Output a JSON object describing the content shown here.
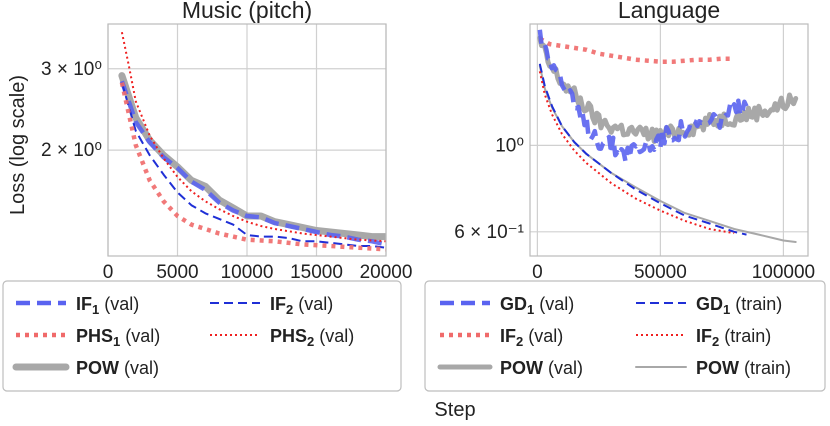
{
  "xlabel_shared": "Step",
  "ylabel_shared": "Loss (log scale)",
  "colors": {
    "blue": "#5a63f0",
    "red": "#f06a6a",
    "darkblue": "#1f2fd6",
    "gray": "#a8a8a8",
    "brightred": "#ef2020"
  },
  "chart_data": [
    {
      "type": "line",
      "title": "Music (pitch)",
      "xlim": [
        0,
        20000
      ],
      "ylim_log": [
        1.18,
        3.75
      ],
      "xticks": [
        0,
        5000,
        10000,
        15000,
        20000
      ],
      "xtick_labels": [
        "0",
        "5000",
        "10000",
        "15000",
        "20000"
      ],
      "yticks": [
        3.0,
        2.0
      ],
      "ytick_labels": [
        "3 × 10⁰",
        "2 × 10⁰"
      ],
      "legend": {
        "entries": [
          {
            "key": "if1_val",
            "name": "IF",
            "sub": "1",
            "suffix": "(val)"
          },
          {
            "key": "if2_val",
            "name": "IF",
            "sub": "2",
            "suffix": "(val)"
          },
          {
            "key": "phs1_val",
            "name": "PHS",
            "sub": "1",
            "suffix": "(val)"
          },
          {
            "key": "phs2_val",
            "name": "PHS",
            "sub": "2",
            "suffix": "(val)"
          },
          {
            "key": "pow_val",
            "name": "POW",
            "sub": "",
            "suffix": "(val)"
          }
        ]
      },
      "series": [
        {
          "key": "pow_val",
          "color": "gray",
          "style": "thick",
          "x": [
            1000,
            2000,
            3000,
            4000,
            5000,
            6000,
            7000,
            8000,
            9000,
            10000,
            11000,
            12000,
            13000,
            14000,
            15000,
            16000,
            17000,
            18000,
            19000,
            20000
          ],
          "y": [
            2.9,
            2.35,
            2.1,
            1.95,
            1.84,
            1.72,
            1.67,
            1.56,
            1.5,
            1.44,
            1.44,
            1.4,
            1.38,
            1.36,
            1.34,
            1.33,
            1.32,
            1.31,
            1.3,
            1.3
          ]
        },
        {
          "key": "if1_val",
          "color": "blue",
          "style": "dashed-thick",
          "x": [
            1000,
            2000,
            3000,
            4000,
            5000,
            6000,
            7000,
            8000,
            9000,
            10000,
            11000,
            12000,
            13000,
            14000,
            15000,
            16000,
            17000,
            18000,
            19000,
            20000
          ],
          "y": [
            2.82,
            2.3,
            2.08,
            1.93,
            1.83,
            1.71,
            1.64,
            1.54,
            1.48,
            1.44,
            1.43,
            1.39,
            1.37,
            1.35,
            1.33,
            1.31,
            1.3,
            1.28,
            1.27,
            1.25
          ]
        },
        {
          "key": "phs2_val",
          "color": "brightred",
          "style": "dotted-thin",
          "x": [
            1000,
            1500,
            2000,
            3000,
            4000,
            5000,
            6000,
            7000,
            8000,
            9000,
            10000,
            11000,
            12000,
            14000,
            16000,
            18000,
            20000
          ],
          "y": [
            3.6,
            3.05,
            2.55,
            2.15,
            1.92,
            1.75,
            1.63,
            1.55,
            1.49,
            1.44,
            1.4,
            1.37,
            1.35,
            1.32,
            1.3,
            1.28,
            1.27
          ]
        },
        {
          "key": "if2_val",
          "color": "darkblue",
          "style": "dashed-thin",
          "x": [
            1000,
            2000,
            3000,
            4000,
            5000,
            6000,
            7000,
            8000,
            9000,
            10000,
            11000,
            12000,
            13000,
            14000,
            15000,
            16000,
            17000,
            18000,
            19000,
            20000
          ],
          "y": [
            2.8,
            2.2,
            1.95,
            1.77,
            1.62,
            1.52,
            1.46,
            1.42,
            1.38,
            1.31,
            1.3,
            1.3,
            1.29,
            1.27,
            1.27,
            1.26,
            1.25,
            1.24,
            1.24,
            1.23
          ]
        },
        {
          "key": "phs1_val",
          "color": "red",
          "style": "dotted-thick",
          "x": [
            1000,
            2000,
            3000,
            4000,
            5000,
            6000,
            7000,
            8000,
            9000,
            10000,
            12000,
            14000,
            16000,
            18000,
            20000
          ],
          "y": [
            2.8,
            2.05,
            1.72,
            1.55,
            1.44,
            1.38,
            1.35,
            1.32,
            1.3,
            1.28,
            1.27,
            1.25,
            1.24,
            1.23,
            1.22
          ]
        }
      ]
    },
    {
      "type": "line",
      "title": "Language",
      "xlim": [
        -3000,
        110000
      ],
      "ylim_log": [
        0.52,
        2.05
      ],
      "xticks": [
        0,
        50000,
        100000
      ],
      "xtick_labels": [
        "0",
        "50000",
        "100000"
      ],
      "yticks": [
        1.0,
        0.6
      ],
      "ytick_labels": [
        "10⁰",
        "6 × 10⁻¹"
      ],
      "legend": {
        "entries": [
          {
            "key": "gd1_val",
            "name": "GD",
            "sub": "1",
            "suffix": "(val)"
          },
          {
            "key": "gd1_train",
            "name": "GD",
            "sub": "1",
            "suffix": "(train)"
          },
          {
            "key": "if2_val",
            "name": "IF",
            "sub": "2",
            "suffix": "(val)"
          },
          {
            "key": "if2_train",
            "name": "IF",
            "sub": "2",
            "suffix": "(train)"
          },
          {
            "key": "pow_val",
            "name": "POW",
            "sub": "",
            "suffix": "(val)"
          },
          {
            "key": "pow_train",
            "name": "POW",
            "sub": "",
            "suffix": "(train)"
          }
        ]
      },
      "series": [
        {
          "key": "pow_val",
          "color": "gray",
          "style": "thick-noisy",
          "x": [
            1000,
            5000,
            10000,
            15000,
            20000,
            25000,
            30000,
            35000,
            40000,
            45000,
            50000,
            55000,
            60000,
            65000,
            70000,
            75000,
            80000,
            85000,
            90000,
            95000,
            100000,
            105000
          ],
          "y": [
            1.85,
            1.6,
            1.45,
            1.35,
            1.25,
            1.15,
            1.12,
            1.1,
            1.08,
            1.07,
            1.06,
            1.08,
            1.1,
            1.12,
            1.15,
            1.17,
            1.18,
            1.2,
            1.22,
            1.24,
            1.28,
            1.32
          ]
        },
        {
          "key": "if2_val",
          "color": "red",
          "style": "dotted-thick",
          "x": [
            1000,
            5000,
            10000,
            15000,
            20000,
            25000,
            30000,
            35000,
            40000,
            45000,
            50000,
            55000,
            60000,
            65000,
            70000,
            75000,
            80000
          ],
          "y": [
            1.88,
            1.82,
            1.8,
            1.78,
            1.76,
            1.72,
            1.7,
            1.68,
            1.66,
            1.65,
            1.64,
            1.64,
            1.65,
            1.66,
            1.66,
            1.67,
            1.67
          ]
        },
        {
          "key": "gd1_val",
          "color": "blue",
          "style": "dashed-thick-noisy",
          "x": [
            1000,
            5000,
            10000,
            15000,
            20000,
            25000,
            30000,
            35000,
            40000,
            45000,
            50000,
            55000,
            60000,
            65000,
            70000,
            75000,
            80000,
            85000
          ],
          "y": [
            1.92,
            1.72,
            1.45,
            1.25,
            1.12,
            1.04,
            1.0,
            0.96,
            0.98,
            1.0,
            1.04,
            1.08,
            1.1,
            1.12,
            1.14,
            1.18,
            1.22,
            1.26
          ]
        },
        {
          "key": "pow_train",
          "color": "gray",
          "style": "solid-thin",
          "x": [
            1000,
            3000,
            6000,
            10000,
            15000,
            20000,
            30000,
            40000,
            50000,
            60000,
            70000,
            80000,
            90000,
            100000,
            105000
          ],
          "y": [
            1.6,
            1.4,
            1.25,
            1.12,
            1.02,
            0.95,
            0.85,
            0.78,
            0.72,
            0.67,
            0.64,
            0.61,
            0.59,
            0.57,
            0.565
          ]
        },
        {
          "key": "gd1_train",
          "color": "darkblue",
          "style": "dashed-thin",
          "x": [
            1000,
            3000,
            6000,
            10000,
            15000,
            20000,
            30000,
            40000,
            50000,
            60000,
            70000,
            80000,
            85000
          ],
          "y": [
            1.62,
            1.42,
            1.26,
            1.12,
            1.02,
            0.95,
            0.85,
            0.77,
            0.71,
            0.66,
            0.63,
            0.6,
            0.59
          ]
        },
        {
          "key": "if2_train",
          "color": "brightred",
          "style": "dotted-thin",
          "x": [
            1000,
            3000,
            6000,
            10000,
            15000,
            20000,
            30000,
            40000,
            50000,
            60000,
            70000,
            80000
          ],
          "y": [
            1.55,
            1.35,
            1.2,
            1.07,
            0.97,
            0.9,
            0.8,
            0.73,
            0.68,
            0.64,
            0.61,
            0.595
          ]
        }
      ]
    }
  ]
}
